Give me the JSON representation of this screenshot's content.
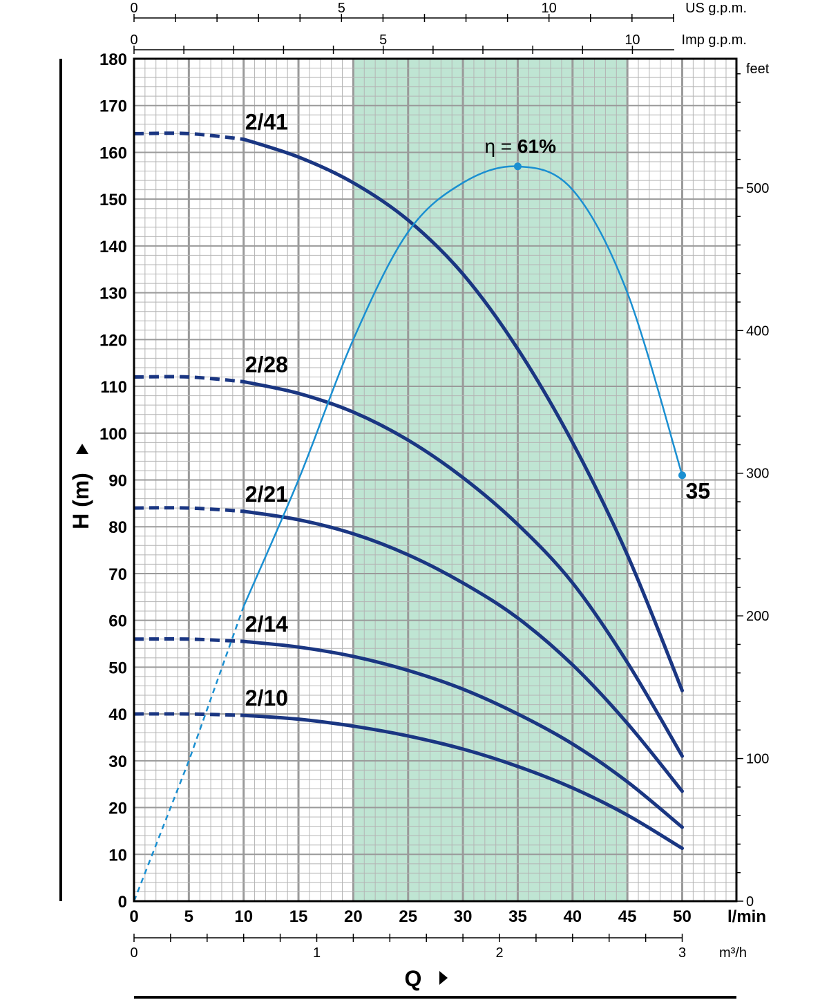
{
  "chart_data": {
    "type": "line",
    "title": "",
    "xlabel": "Q",
    "ylabel": "H (m)",
    "x_unit": "l/min",
    "xlim": [
      0,
      55
    ],
    "ylim": [
      0,
      180
    ],
    "grid": true,
    "x_ticks": [
      0,
      5,
      10,
      15,
      20,
      25,
      30,
      35,
      40,
      45,
      50
    ],
    "y_ticks": [
      0,
      10,
      20,
      30,
      40,
      50,
      60,
      70,
      80,
      90,
      100,
      110,
      120,
      130,
      140,
      150,
      160,
      170,
      180
    ],
    "recommended_range": [
      20,
      45
    ],
    "top_axes": [
      {
        "label": "US g.p.m.",
        "ticks": [
          0,
          5,
          10
        ],
        "per_unit_lmin": 3.785
      },
      {
        "label": "Imp g.p.m.",
        "ticks": [
          0,
          5,
          10
        ],
        "per_unit_lmin": 4.546
      }
    ],
    "bottom_axis": {
      "label": "m³/h",
      "ticks": [
        0,
        1,
        2,
        3
      ],
      "per_unit_lmin": 16.667
    },
    "right_axis": {
      "label": "feet",
      "ticks": [
        0,
        100,
        200,
        300,
        400,
        500
      ],
      "per_unit_m": 0.3048
    },
    "series": [
      {
        "name": "2/41",
        "dashed_until": 10,
        "x": [
          0,
          5,
          10,
          15,
          20,
          25,
          30,
          35,
          40,
          45,
          50
        ],
        "y": [
          164,
          164,
          162.8,
          159,
          153.5,
          145.5,
          134,
          118,
          98,
          74,
          45
        ]
      },
      {
        "name": "2/28",
        "dashed_until": 10,
        "x": [
          0,
          5,
          10,
          15,
          20,
          25,
          30,
          35,
          40,
          45,
          50
        ],
        "y": [
          112,
          112,
          111,
          108.5,
          104.5,
          98.5,
          90.5,
          80.5,
          68,
          51,
          31
        ]
      },
      {
        "name": "2/21",
        "dashed_until": 10,
        "x": [
          0,
          5,
          10,
          15,
          20,
          25,
          30,
          35,
          40,
          45,
          50
        ],
        "y": [
          84,
          84,
          83.3,
          81.5,
          78.5,
          74,
          68,
          60.5,
          50.5,
          38,
          23.5
        ]
      },
      {
        "name": "2/14",
        "dashed_until": 10,
        "x": [
          0,
          5,
          10,
          15,
          20,
          25,
          30,
          35,
          40,
          45,
          50
        ],
        "y": [
          56,
          56,
          55.5,
          54.3,
          52.3,
          49.3,
          45.3,
          40,
          33.6,
          25.5,
          15.8
        ]
      },
      {
        "name": "2/10",
        "dashed_until": 10,
        "x": [
          0,
          5,
          10,
          15,
          20,
          25,
          30,
          35,
          40,
          45,
          50
        ],
        "y": [
          40,
          40,
          39.7,
          38.9,
          37.4,
          35.3,
          32.5,
          28.8,
          24.2,
          18.4,
          11.3
        ]
      }
    ],
    "efficiency": {
      "label_prefix": "η =",
      "label_value": "61%",
      "peak": {
        "x": 35,
        "y": 157
      },
      "end": {
        "x": 50,
        "y": 91,
        "label": "35"
      },
      "dashed_until": 10,
      "x": [
        0,
        5,
        10,
        15,
        20,
        25,
        30,
        35,
        40,
        45,
        50
      ],
      "y": [
        0,
        30,
        63,
        90,
        120,
        143,
        153.5,
        157,
        152,
        130,
        91
      ]
    },
    "colors": {
      "pump": "#1a3682",
      "efficiency": "#1a8fd1",
      "range": "#bfe5d3",
      "grid": "#b4b4b4"
    }
  }
}
